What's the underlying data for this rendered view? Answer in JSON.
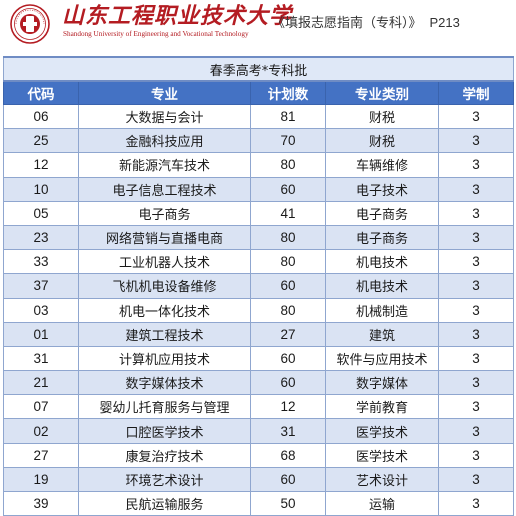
{
  "header": {
    "school_name_cn": "山东工程职业技术大学",
    "school_name_en": "Shandong University of Engineering and Vocational Technology",
    "guide_title": "《填报志愿指南（专科）》",
    "page_label": "P213",
    "colors": {
      "brand_red": "#b41c22",
      "table_header_blue": "#4472c4",
      "row_stripe": "#dae3f3"
    }
  },
  "table": {
    "batch_title": "春季高考*专科批",
    "columns": [
      "代码",
      "专业",
      "计划数",
      "专业类别",
      "学制"
    ],
    "rows": [
      {
        "code": "06",
        "major": "大数据与会计",
        "plan": "81",
        "category": "财税",
        "years": "3"
      },
      {
        "code": "25",
        "major": "金融科技应用",
        "plan": "70",
        "category": "财税",
        "years": "3"
      },
      {
        "code": "12",
        "major": "新能源汽车技术",
        "plan": "80",
        "category": "车辆维修",
        "years": "3"
      },
      {
        "code": "10",
        "major": "电子信息工程技术",
        "plan": "60",
        "category": "电子技术",
        "years": "3"
      },
      {
        "code": "05",
        "major": "电子商务",
        "plan": "41",
        "category": "电子商务",
        "years": "3"
      },
      {
        "code": "23",
        "major": "网络营销与直播电商",
        "plan": "80",
        "category": "电子商务",
        "years": "3"
      },
      {
        "code": "33",
        "major": "工业机器人技术",
        "plan": "80",
        "category": "机电技术",
        "years": "3"
      },
      {
        "code": "37",
        "major": "飞机机电设备维修",
        "plan": "60",
        "category": "机电技术",
        "years": "3"
      },
      {
        "code": "03",
        "major": "机电一体化技术",
        "plan": "80",
        "category": "机械制造",
        "years": "3"
      },
      {
        "code": "01",
        "major": "建筑工程技术",
        "plan": "27",
        "category": "建筑",
        "years": "3"
      },
      {
        "code": "31",
        "major": "计算机应用技术",
        "plan": "60",
        "category": "软件与应用技术",
        "years": "3"
      },
      {
        "code": "21",
        "major": "数字媒体技术",
        "plan": "60",
        "category": "数字媒体",
        "years": "3"
      },
      {
        "code": "07",
        "major": "婴幼儿托育服务与管理",
        "plan": "12",
        "category": "学前教育",
        "years": "3"
      },
      {
        "code": "02",
        "major": "口腔医学技术",
        "plan": "31",
        "category": "医学技术",
        "years": "3"
      },
      {
        "code": "27",
        "major": "康复治疗技术",
        "plan": "68",
        "category": "医学技术",
        "years": "3"
      },
      {
        "code": "19",
        "major": "环境艺术设计",
        "plan": "60",
        "category": "艺术设计",
        "years": "3"
      },
      {
        "code": "39",
        "major": "民航运输服务",
        "plan": "50",
        "category": "运输",
        "years": "3"
      }
    ]
  }
}
